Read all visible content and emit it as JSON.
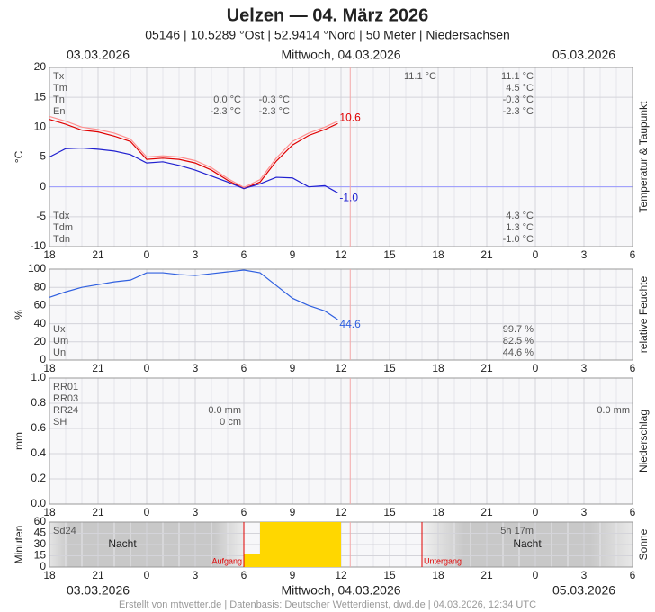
{
  "header": {
    "title": "Uelzen  —  04. März 2026",
    "subtitle": "05146  |  10.5289 °Ost  |  52.9414 °Nord  |  50 Meter  |  Niedersachsen",
    "date_left": "03.03.2026",
    "date_center": "Mittwoch, 04.03.2026",
    "date_right": "05.03.2026",
    "footer": "Erstellt von mtwetter.de | Datenbasis: Deutscher Wetterdienst, dwd.de | 04.03.2026, 12:34 UTC"
  },
  "now": 18.57,
  "chart_data": [
    {
      "type": "line",
      "y_label": "°C",
      "side_label": "Temperatur & Taupunkt",
      "xlim": [
        0,
        36
      ],
      "xticks": [
        {
          "value": 0,
          "label": "18"
        },
        {
          "value": 3,
          "label": "21"
        },
        {
          "value": 6,
          "label": "0"
        },
        {
          "value": 9,
          "label": "3"
        },
        {
          "value": 12,
          "label": "6"
        },
        {
          "value": 15,
          "label": "9"
        },
        {
          "value": 18,
          "label": "12"
        },
        {
          "value": 21,
          "label": "15"
        },
        {
          "value": 24,
          "label": "18"
        },
        {
          "value": 27,
          "label": "21"
        },
        {
          "value": 30,
          "label": "0"
        },
        {
          "value": 33,
          "label": "3"
        },
        {
          "value": 36,
          "label": "6"
        }
      ],
      "ylim": [
        -10,
        20
      ],
      "yticks": [
        -10,
        -5,
        0,
        5,
        10,
        15,
        20
      ],
      "series": [
        {
          "color": "#ff9090",
          "x": [
            0,
            1,
            2,
            3,
            4,
            5,
            6,
            7,
            8,
            9,
            10,
            11,
            12,
            13,
            14,
            15,
            16,
            17,
            17.8
          ],
          "values": [
            11.8,
            11.0,
            10.0,
            9.6,
            9.0,
            8.0,
            5.0,
            5.2,
            5.0,
            4.4,
            3.2,
            1.4,
            -0.1,
            1.2,
            4.8,
            7.6,
            9.0,
            10.0,
            11.0
          ]
        },
        {
          "color": "#e00000",
          "x": [
            0,
            1,
            2,
            3,
            4,
            5,
            6,
            7,
            8,
            9,
            10,
            11,
            12,
            13,
            14,
            15,
            16,
            17,
            17.8
          ],
          "values": [
            11.3,
            10.5,
            9.5,
            9.2,
            8.5,
            7.6,
            4.6,
            4.8,
            4.6,
            4.0,
            2.8,
            1.1,
            -0.3,
            0.8,
            4.3,
            7.0,
            8.6,
            9.6,
            10.6
          ],
          "value_labels": [
            null,
            null,
            null,
            null,
            null,
            null,
            null,
            null,
            null,
            null,
            null,
            null,
            null,
            null,
            null,
            null,
            null,
            null,
            "10.6"
          ]
        },
        {
          "color": "#2020d0",
          "x": [
            0,
            1,
            2,
            3,
            4,
            5,
            6,
            7,
            8,
            9,
            10,
            11,
            12,
            13,
            14,
            15,
            16,
            17,
            17.8
          ],
          "values": [
            5.0,
            6.4,
            6.5,
            6.3,
            6.0,
            5.4,
            4.0,
            4.2,
            3.6,
            2.8,
            1.8,
            0.8,
            -0.3,
            0.5,
            1.6,
            1.5,
            0.0,
            0.2,
            -1.0
          ],
          "value_labels": [
            null,
            null,
            null,
            null,
            null,
            null,
            null,
            null,
            null,
            null,
            null,
            null,
            null,
            null,
            null,
            null,
            null,
            null,
            "-1.0"
          ]
        }
      ],
      "stats": [
        {
          "label": "Tx",
          "cells": [
            null,
            null,
            "11.1 °C",
            "11.1 °C",
            null
          ]
        },
        {
          "label": "Tm",
          "cells": [
            null,
            null,
            null,
            "4.5 °C",
            null
          ]
        },
        {
          "label": "Tn",
          "cells": [
            "0.0 °C",
            "-0.3 °C",
            null,
            "-0.3 °C",
            null
          ]
        },
        {
          "label": "En",
          "cells": [
            "-2.3 °C",
            "-2.3 °C",
            null,
            "-2.3 °C",
            null
          ]
        }
      ],
      "stats_bottom": [
        {
          "label": "Tdx",
          "cells": [
            null,
            null,
            null,
            "4.3 °C",
            null
          ]
        },
        {
          "label": "Tdm",
          "cells": [
            null,
            null,
            null,
            "1.3 °C",
            null
          ]
        },
        {
          "label": "Tdn",
          "cells": [
            null,
            null,
            null,
            "-1.0 °C",
            null
          ]
        }
      ]
    },
    {
      "type": "line",
      "y_label": "%",
      "side_label": "relative Feuchte",
      "xlim": [
        0,
        36
      ],
      "xticks": [
        {
          "value": 0,
          "label": "18"
        },
        {
          "value": 3,
          "label": "21"
        },
        {
          "value": 6,
          "label": "0"
        },
        {
          "value": 9,
          "label": "3"
        },
        {
          "value": 12,
          "label": "6"
        },
        {
          "value": 15,
          "label": "9"
        },
        {
          "value": 18,
          "label": "12"
        },
        {
          "value": 21,
          "label": "15"
        },
        {
          "value": 24,
          "label": "18"
        },
        {
          "value": 27,
          "label": "21"
        },
        {
          "value": 30,
          "label": "0"
        },
        {
          "value": 33,
          "label": "3"
        },
        {
          "value": 36,
          "label": "6"
        }
      ],
      "ylim": [
        0,
        100
      ],
      "yticks": [
        0,
        20,
        40,
        60,
        80,
        100
      ],
      "series": [
        {
          "color": "#3060e0",
          "x": [
            0,
            1,
            2,
            3,
            4,
            5,
            6,
            7,
            8,
            9,
            10,
            11,
            12,
            13,
            14,
            15,
            16,
            17,
            17.8
          ],
          "values": [
            69,
            75,
            80,
            83,
            86,
            88,
            96,
            96,
            94,
            93,
            95,
            97,
            99,
            96,
            82,
            68,
            60,
            54,
            44.6
          ],
          "value_labels": [
            null,
            null,
            null,
            null,
            null,
            null,
            null,
            null,
            null,
            null,
            null,
            null,
            null,
            null,
            null,
            null,
            null,
            null,
            "44.6"
          ]
        }
      ],
      "stats_bottom": [
        {
          "label": "Ux",
          "cells": [
            null,
            null,
            null,
            "99.7 %",
            null
          ]
        },
        {
          "label": "Um",
          "cells": [
            null,
            null,
            null,
            "82.5 %",
            null
          ]
        },
        {
          "label": "Un",
          "cells": [
            null,
            null,
            null,
            "44.6 %",
            null
          ]
        }
      ]
    },
    {
      "type": "bar",
      "y_label": "mm",
      "side_label": "Niederschlag",
      "xlim": [
        0,
        36
      ],
      "xticks": [
        {
          "value": 0,
          "label": "18"
        },
        {
          "value": 3,
          "label": "21"
        },
        {
          "value": 6,
          "label": "0"
        },
        {
          "value": 9,
          "label": "3"
        },
        {
          "value": 12,
          "label": "6"
        },
        {
          "value": 15,
          "label": "9"
        },
        {
          "value": 18,
          "label": "12"
        },
        {
          "value": 21,
          "label": "15"
        },
        {
          "value": 24,
          "label": "18"
        },
        {
          "value": 27,
          "label": "21"
        },
        {
          "value": 30,
          "label": "0"
        },
        {
          "value": 33,
          "label": "3"
        },
        {
          "value": 36,
          "label": "6"
        }
      ],
      "ylim": [
        0,
        1
      ],
      "yticks": [
        {
          "value": 0,
          "label": "0.0"
        },
        {
          "value": 0.2,
          "label": "0.2"
        },
        {
          "value": 0.4,
          "label": "0.4"
        },
        {
          "value": 0.6,
          "label": "0.6"
        },
        {
          "value": 0.8,
          "label": "0.8"
        },
        {
          "value": 1,
          "label": "1.0"
        }
      ],
      "series": [],
      "stats": [
        {
          "label": "RR01"
        },
        {
          "label": "RR03"
        },
        {
          "label": "RR24",
          "cells": [
            "0.0 mm",
            null,
            null,
            null,
            "0.0 mm"
          ]
        },
        {
          "label": "SH",
          "cells": [
            "0 cm",
            null,
            null,
            null,
            null
          ]
        }
      ]
    },
    {
      "type": "bar",
      "y_label": "Minuten",
      "side_label": "Sonne",
      "xlim": [
        0,
        36
      ],
      "xticks": [
        {
          "value": 0,
          "label": "18"
        },
        {
          "value": 3,
          "label": "21"
        },
        {
          "value": 6,
          "label": "0"
        },
        {
          "value": 9,
          "label": "3"
        },
        {
          "value": 12,
          "label": "6"
        },
        {
          "value": 15,
          "label": "9"
        },
        {
          "value": 18,
          "label": "12"
        },
        {
          "value": 21,
          "label": "15"
        },
        {
          "value": 24,
          "label": "18"
        },
        {
          "value": 27,
          "label": "21"
        },
        {
          "value": 30,
          "label": "0"
        },
        {
          "value": 33,
          "label": "3"
        },
        {
          "value": 36,
          "label": "6"
        }
      ],
      "ylim": [
        0,
        60
      ],
      "yticks": [
        0,
        15,
        30,
        45,
        60
      ],
      "series": [
        {
          "color": "#ffd700",
          "x": [
            12,
            13,
            14,
            15,
            16,
            17
          ],
          "values": [
            18,
            60,
            60,
            60,
            60,
            60
          ]
        }
      ],
      "stats": [
        {
          "label": "Sd24",
          "cells": [
            null,
            null,
            null,
            "5h 17m",
            null
          ]
        }
      ],
      "annotations": [
        {
          "text": "Nacht",
          "x": 4.5
        },
        {
          "text": "Nacht",
          "x": 29.5
        }
      ],
      "events": [
        {
          "label": "Aufgang",
          "x": 12
        },
        {
          "label": "Untergang",
          "x": 23
        }
      ]
    }
  ]
}
